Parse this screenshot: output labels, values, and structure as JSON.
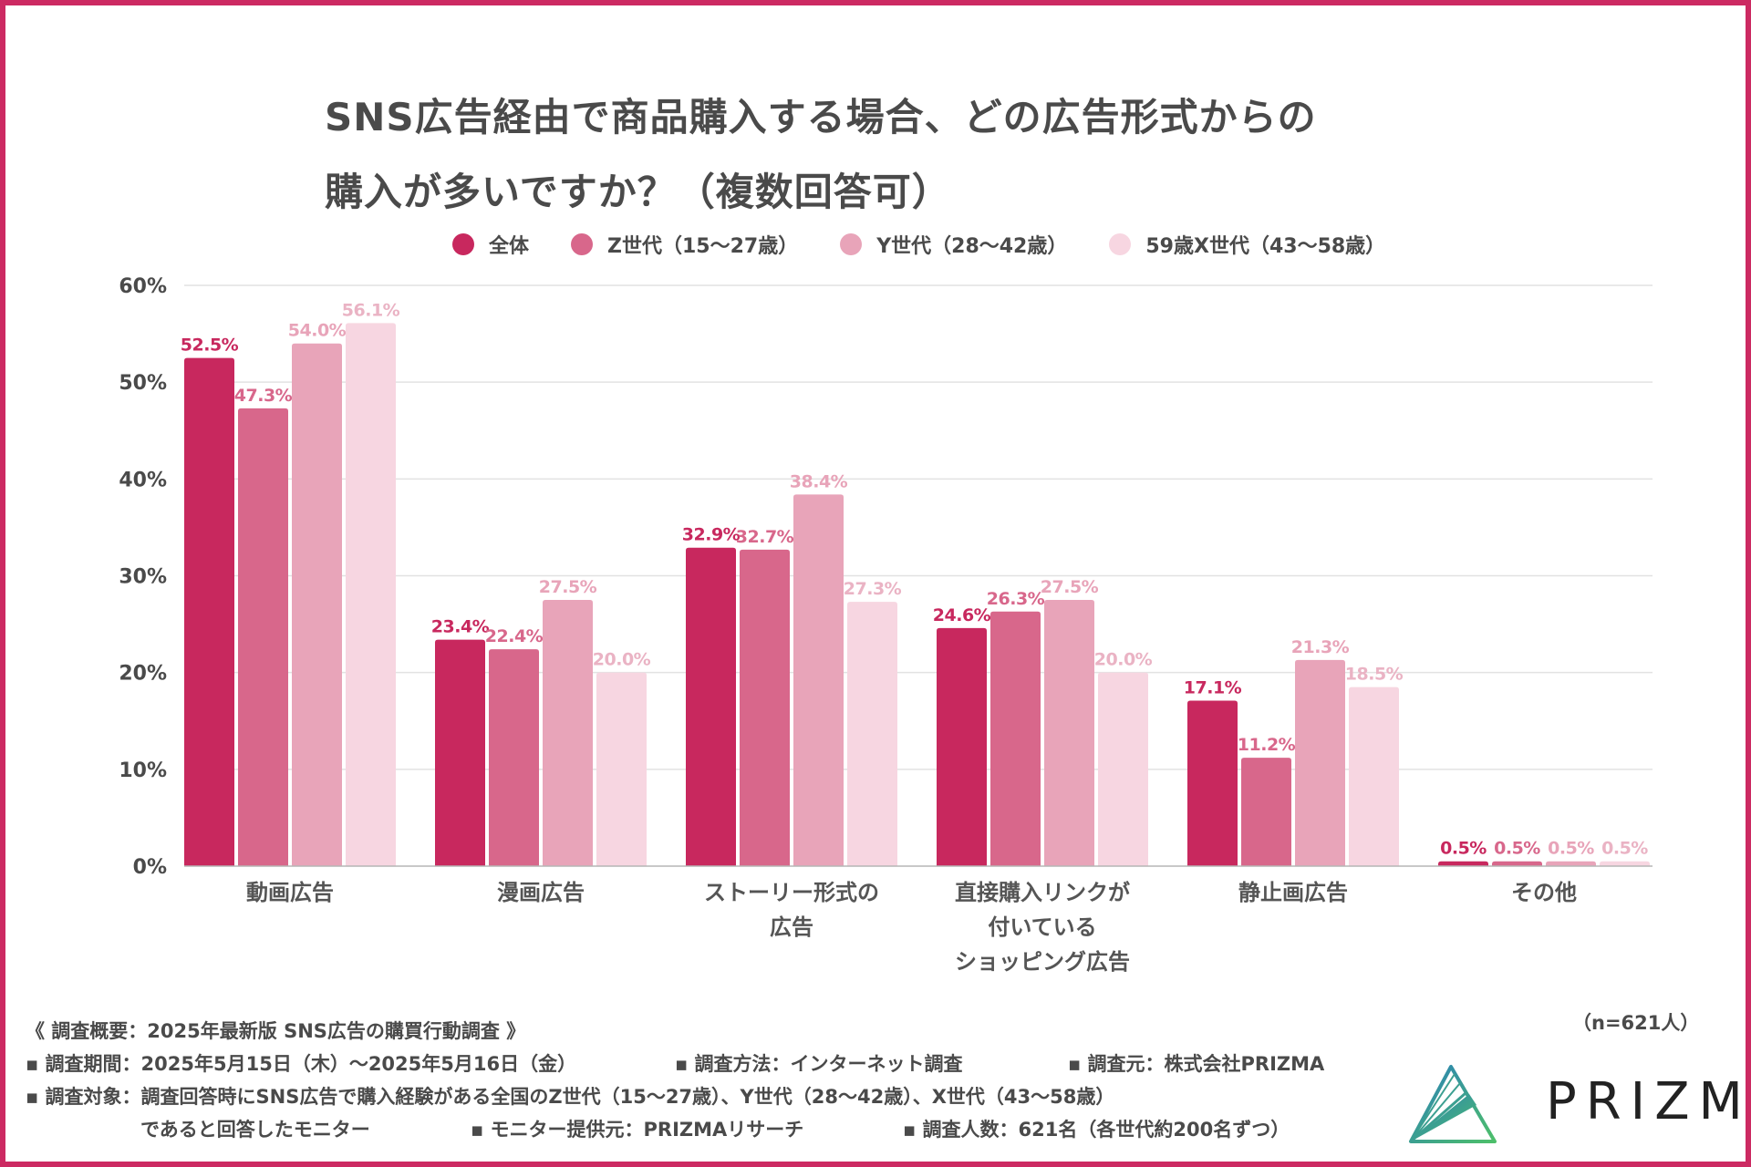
{
  "title": {
    "line1": "SNS広告経由で商品購入する場合、どの広告形式からの",
    "line2": "購入が多いですか？（複数回答可）"
  },
  "colors": {
    "border": "#cc2a62",
    "text": "#4a4a4a",
    "grid": "#e2e2e2",
    "axis": "#b5b5b5",
    "series": [
      "#c8285e",
      "#d8678b",
      "#e8a4b9",
      "#f7d6e1"
    ],
    "label_colors": [
      "#c8285e",
      "#d8678b",
      "#e8a4b9",
      "#eab3c4"
    ]
  },
  "chart_data": {
    "type": "bar",
    "title": "SNS広告経由で商品購入する場合、どの広告形式からの購入が多いですか？（複数回答可）",
    "xlabel": "",
    "ylabel": "",
    "ylim": [
      0,
      60
    ],
    "yticks": [
      0,
      10,
      20,
      30,
      40,
      50,
      60
    ],
    "ytick_labels": [
      "0%",
      "10%",
      "20%",
      "30%",
      "40%",
      "50%",
      "60%"
    ],
    "grid": true,
    "legend_position": "top",
    "categories": [
      [
        "動画広告"
      ],
      [
        "漫画広告"
      ],
      [
        "ストーリー形式の",
        "広告"
      ],
      [
        "直接購入リンクが",
        "付いている",
        "ショッピング広告"
      ],
      [
        "静止画広告"
      ],
      [
        "その他"
      ]
    ],
    "series": [
      {
        "name": "全体",
        "values": [
          52.5,
          23.4,
          32.9,
          24.6,
          17.1,
          0.5
        ]
      },
      {
        "name": "Z世代（15〜27歳）",
        "values": [
          47.3,
          22.4,
          32.7,
          26.3,
          11.2,
          0.5
        ]
      },
      {
        "name": "Y世代（28〜42歳）",
        "values": [
          54.0,
          27.5,
          38.4,
          27.5,
          21.3,
          0.5
        ]
      },
      {
        "name": "59歳X世代（43〜58歳）",
        "values": [
          56.1,
          20.0,
          27.3,
          20.0,
          18.5,
          0.5
        ]
      }
    ]
  },
  "legend": [
    {
      "label": "全体"
    },
    {
      "label": "Z世代（15〜27歳）"
    },
    {
      "label": "Y世代（28〜42歳）"
    },
    {
      "label": "59歳X世代（43〜58歳）"
    }
  ],
  "footer": {
    "heading": "《 調査概要：2025年最新版 SNS広告の購買行動調査 》",
    "period": "▪ 調査期間：2025年5月15日（木）〜2025年5月16日（金）",
    "method": "▪ 調査方法：インターネット調査",
    "source": "▪ 調査元：株式会社PRIZMA",
    "target": "▪ 調査対象：調査回答時にSNS広告で購入経験がある全国のZ世代（15〜27歳）、Y世代（28〜42歳）、X世代（43〜58歳）",
    "target_cont": "であると回答したモニター",
    "provider": "▪ モニター提供元：PRIZMAリサーチ",
    "count": "▪ 調査人数：621名（各世代約200名ずつ）"
  },
  "sample_size": "（n=621人）",
  "logo": {
    "text": "PRIZMΛ"
  }
}
